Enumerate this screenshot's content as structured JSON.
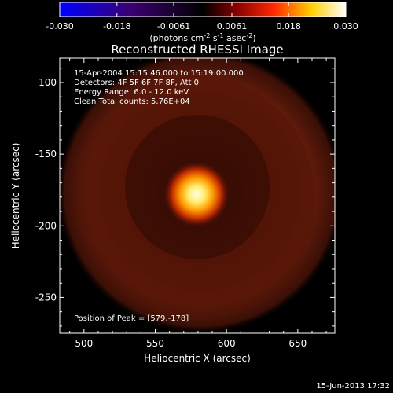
{
  "chart_data": {
    "type": "heatmap",
    "title": "Reconstructed RHESSI Image",
    "xlabel": "Heliocentric X (arcsec)",
    "ylabel": "Heliocentric Y (arcsec)",
    "xlim": [
      483,
      676
    ],
    "ylim": [
      -275,
      -83
    ],
    "xticks": [
      500,
      550,
      600,
      650
    ],
    "yticks": [
      -100,
      -150,
      -200,
      -250
    ],
    "colorbar": {
      "range": [
        -0.03,
        0.03
      ],
      "tick_labels": [
        "-0.030",
        "-0.018",
        "-0.0061",
        "0.0061",
        "0.018",
        "0.030"
      ],
      "label": "(photons cm",
      "label_exp1": "-2",
      "label_mid": " s",
      "label_exp2": "-1",
      "label_mid2": " asec",
      "label_exp3": "-2",
      "label_end": ")",
      "colormap": [
        "#0000ff",
        "#000000",
        "#ff0000",
        "#ffff00",
        "#ffffff"
      ]
    },
    "source": {
      "peak_x": 579,
      "peak_y": -178,
      "ring_center_x": 577,
      "ring_center_y": -178
    },
    "annotations": [
      "15-Apr-2004 15:15:46.000 to 15:19:00.000",
      "Detectors: 4F 5F 6F 7F 8F, Att 0",
      "Energy Range: 6.0 - 12.0 keV",
      "Clean    Total counts: 5.76E+04"
    ],
    "peak_label": "Position of Peak = [579,-178]"
  },
  "footer": {
    "timestamp": "15-Jun-2013 17:32"
  }
}
